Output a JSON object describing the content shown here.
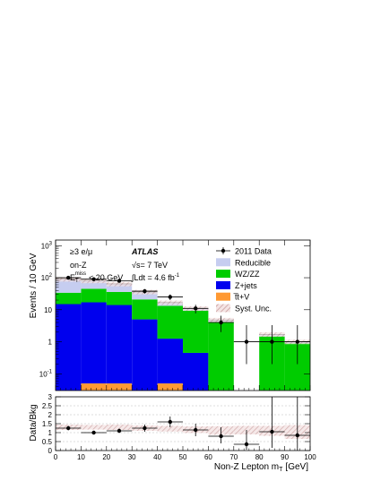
{
  "chart_data": [
    {
      "type": "bar",
      "stacked": true,
      "x_bins": [
        0,
        10,
        20,
        30,
        40,
        50,
        60,
        70,
        80,
        90,
        100
      ],
      "xlim": [
        0,
        100
      ],
      "ylim": [
        0.03,
        1500
      ],
      "y_scale": "log",
      "ylabel": "Events / 10 GeV",
      "x_ticks": [
        0,
        10,
        20,
        30,
        40,
        50,
        60,
        70,
        80,
        90,
        100
      ],
      "y_ticks": [
        {
          "value": 0.1,
          "base": "10",
          "exp": "-1"
        },
        {
          "value": 1,
          "text": "1"
        },
        {
          "value": 10,
          "text": "10"
        },
        {
          "value": 100,
          "base": "10",
          "exp": "2"
        },
        {
          "value": 1000,
          "base": "10",
          "exp": "3"
        }
      ],
      "legend_position": "top-right",
      "series": [
        {
          "name": "t̅t+V",
          "color": "#ff9933",
          "values": [
            0,
            0.05,
            0.05,
            0,
            0.05,
            0,
            0,
            0,
            0,
            0
          ]
        },
        {
          "name": "Z+jets",
          "color": "#0000ee",
          "values": [
            15,
            17,
            14,
            5,
            1.2,
            0.45,
            0,
            0,
            0,
            0
          ]
        },
        {
          "name": "WZ/ZZ",
          "color": "#00cc00",
          "values": [
            19,
            28,
            22,
            16,
            12,
            9,
            4.2,
            0,
            1.5,
            0.9
          ]
        },
        {
          "name": "Reducible",
          "color": "#c6cdf0",
          "values": [
            56,
            35,
            28,
            15,
            3.5,
            1.6,
            0.6,
            0,
            0.2,
            0.1
          ]
        }
      ],
      "data": {
        "name": "2011 Data",
        "x": [
          5,
          15,
          25,
          35,
          45,
          55,
          65,
          75,
          85,
          95
        ],
        "y": [
          100,
          90,
          80,
          38,
          25,
          11,
          4,
          1,
          1,
          1
        ],
        "y_err_low": [
          10,
          9,
          9,
          6,
          5,
          3.3,
          2,
          0.8,
          0.8,
          0.8
        ],
        "y_err_high": [
          10,
          9,
          9,
          6,
          5,
          3.3,
          2.5,
          2.3,
          2.3,
          2.3
        ]
      },
      "syst_band": {
        "name": "Syst. Unc."
      },
      "annotations": {
        "lepton_req": "≥3 e/μ",
        "experiment": "ATLAS",
        "region": "on-Z",
        "sqrt_s": "√s= 7 TeV",
        "met_main": "E",
        "met_sub": "T",
        "met_sup": "miss",
        "met_cut": "< 20 GeV",
        "lumi_main": "∫Ldt = 4.6 fb",
        "lumi_exp": "-1"
      }
    },
    {
      "type": "scatter",
      "xlabel_main": "Non-Z Lepton m",
      "xlabel_sub": "T",
      "xlabel_unit": "[GeV]",
      "ylabel": "Data/Bkg",
      "xlim": [
        0,
        100
      ],
      "ylim": [
        0,
        3
      ],
      "x_ticks": [
        0,
        10,
        20,
        30,
        40,
        50,
        60,
        70,
        80,
        90,
        100
      ],
      "y_ticks": [
        0,
        0.5,
        1,
        1.5,
        2,
        2.5,
        3
      ],
      "x": [
        5,
        15,
        25,
        35,
        45,
        55,
        65,
        75,
        85,
        95
      ],
      "y": [
        1.25,
        1.0,
        1.1,
        1.25,
        1.6,
        1.15,
        0.8,
        0.35,
        1.05,
        0.85
      ],
      "y_err_low": [
        0.12,
        0.1,
        0.12,
        0.2,
        0.3,
        0.35,
        0.4,
        0.3,
        0.9,
        0.85
      ],
      "y_err_high": [
        0.12,
        0.1,
        0.12,
        0.2,
        0.3,
        0.35,
        0.5,
        0.8,
        2.2,
        2.2
      ],
      "band_low": [
        1.15,
        1.17,
        1.15,
        1.1,
        1.06,
        0.98,
        0.88,
        0.9,
        0.82,
        0.65
      ],
      "band_high": [
        1.45,
        1.43,
        1.45,
        1.4,
        1.38,
        1.35,
        1.36,
        1.38,
        1.38,
        1.42
      ]
    }
  ]
}
